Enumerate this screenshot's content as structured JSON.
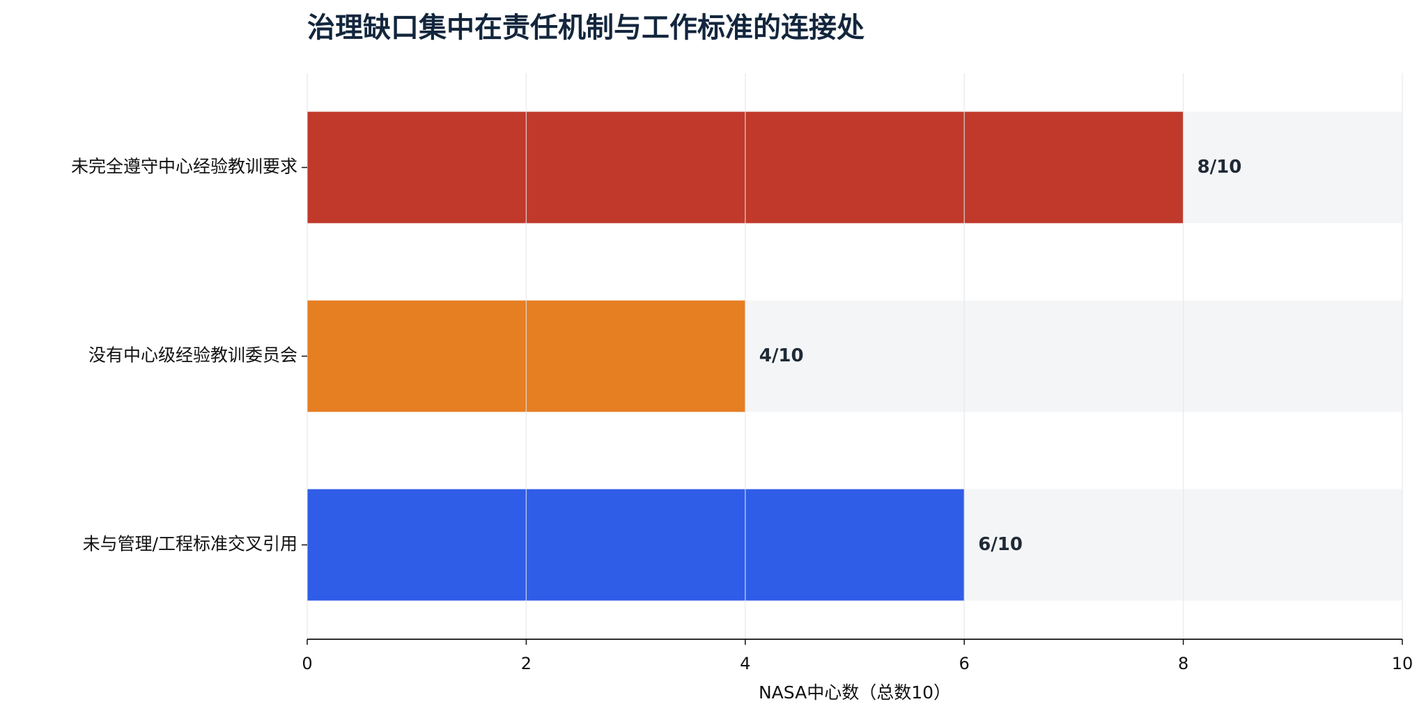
{
  "chart_data": {
    "type": "barh",
    "title": "治理缺口集中在责任机制与工作标准的连接处",
    "categories": [
      "未完全遵守中心经验教训要求",
      "没有中心级经验教训委员会",
      "未与管理/工程标准交叉引用"
    ],
    "values": [
      8,
      4,
      6
    ],
    "value_labels": [
      "8/10",
      "4/10",
      "6/10"
    ],
    "colors": [
      "#c0392b",
      "#e67e22",
      "#2f5de8"
    ],
    "xlabel": "NASA中心数（总数10）",
    "xlim": [
      0,
      10
    ],
    "xticks": [
      0,
      2,
      4,
      6,
      8,
      10
    ],
    "grid": true
  }
}
